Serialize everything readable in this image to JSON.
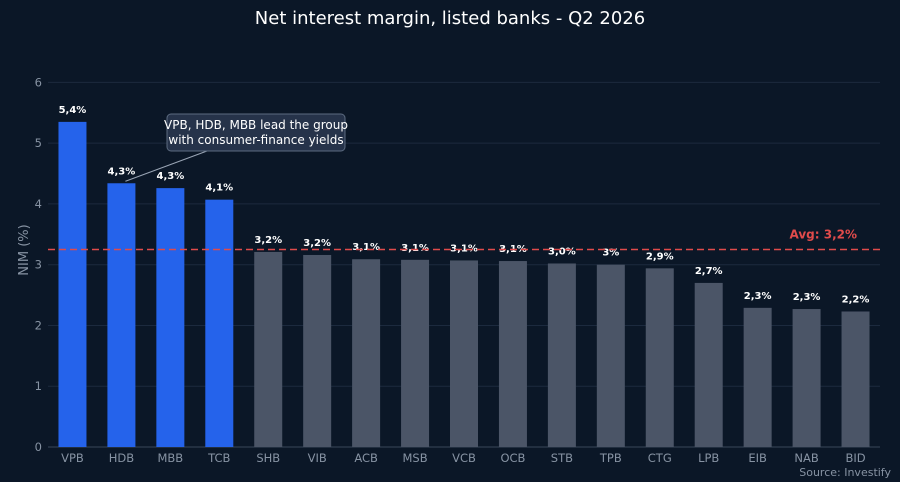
{
  "chart_data": {
    "type": "bar",
    "title": "Net interest margin, listed banks - Q2 2026",
    "xlabel": "",
    "ylabel": "NIM (%)",
    "ylim": [
      0,
      6.5
    ],
    "yticks": [
      0,
      1,
      2,
      3,
      4,
      5,
      6
    ],
    "grid": true,
    "categories": [
      "VPB",
      "HDB",
      "MBB",
      "TCB",
      "SHB",
      "VIB",
      "ACB",
      "MSB",
      "VCB",
      "OCB",
      "STB",
      "TPB",
      "CTG",
      "LPB",
      "EIB",
      "NAB",
      "BID"
    ],
    "values": [
      5.35,
      4.34,
      4.26,
      4.07,
      3.21,
      3.16,
      3.09,
      3.08,
      3.07,
      3.06,
      3.02,
      3.0,
      2.94,
      2.7,
      2.29,
      2.27,
      2.23
    ],
    "labels": [
      "5,4%",
      "4,3%",
      "4,3%",
      "4,1%",
      "3,2%",
      "3,2%",
      "3,1%",
      "3,1%",
      "3,1%",
      "3,1%",
      "3,0%",
      "3%",
      "2,9%",
      "2,7%",
      "2,3%",
      "2,3%",
      "2,2%"
    ],
    "highlight_count": 4,
    "colors": {
      "highlight": "#2563eb",
      "default": "#4b5567",
      "average": "#e04b4b",
      "background": "#0b1727",
      "grid": "#1c2a3e"
    },
    "average": {
      "value": 3.25,
      "label": "Avg: 3,2%"
    },
    "annotation": {
      "lines": [
        "VPB, HDB, MBB lead the group",
        "with consumer-finance yields"
      ],
      "target_category": "HDB"
    },
    "source": "Source: Investify"
  }
}
